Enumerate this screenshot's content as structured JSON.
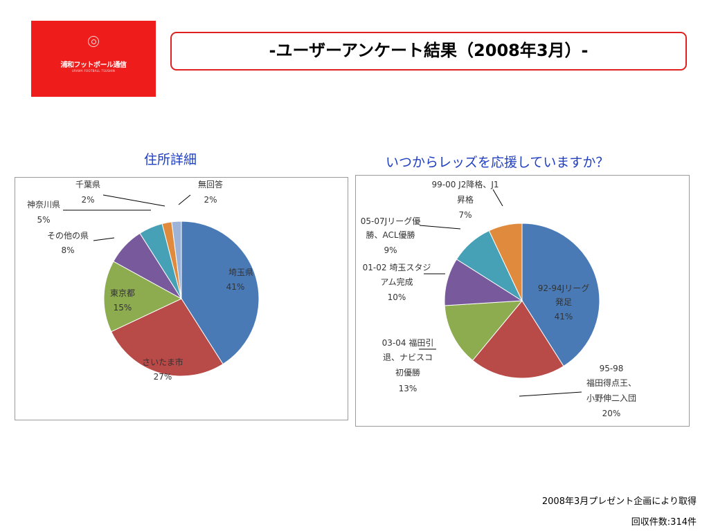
{
  "logo": {
    "text": "浦和フットボール通信",
    "subtext": "URAWA FOOTBALL TSUSHIN",
    "background": "#ef1c1c"
  },
  "header": {
    "title": "-ユーザーアンケート結果（2008年3月）-"
  },
  "chart_data": [
    {
      "type": "pie",
      "title": "住所詳細",
      "slices": [
        {
          "label": "埼玉県",
          "value": 41,
          "pct_label": "41%",
          "color": "#4a7ab5"
        },
        {
          "label": "さいたま市",
          "value": 27,
          "pct_label": "27%",
          "color": "#b84a48"
        },
        {
          "label": "東京都",
          "value": 15,
          "pct_label": "15%",
          "color": "#8dab4f"
        },
        {
          "label": "その他の県",
          "value": 8,
          "pct_label": "8%",
          "color": "#77599c"
        },
        {
          "label": "神奈川県",
          "value": 5,
          "pct_label": "5%",
          "color": "#46a0b6"
        },
        {
          "label": "千葉県",
          "value": 2,
          "pct_label": "2%",
          "color": "#e08a3e"
        },
        {
          "label": "無回答",
          "value": 2,
          "pct_label": "2%",
          "color": "#9db3d8"
        }
      ]
    },
    {
      "type": "pie",
      "title": "いつからレッズを応援していますか？",
      "slices": [
        {
          "label": "92-94Jリーグ発足",
          "value": 41,
          "pct_label": "41%",
          "color": "#4a7ab5"
        },
        {
          "label": "95-98 福田得点王、小野伸二入団",
          "value": 20,
          "pct_label": "20%",
          "color": "#b84a48"
        },
        {
          "label": "03-04 福田引退、ナビスコ初優勝",
          "value": 13,
          "pct_label": "13%",
          "color": "#8dab4f"
        },
        {
          "label": "01-02 埼玉スタジアム完成",
          "value": 10,
          "pct_label": "10%",
          "color": "#77599c"
        },
        {
          "label": "05-07Jリーグ優勝、ACL優勝",
          "value": 9,
          "pct_label": "9%",
          "color": "#46a0b6"
        },
        {
          "label": "99-00 J2降格、J1昇格",
          "value": 7,
          "pct_label": "7%",
          "color": "#e08a3e"
        }
      ]
    }
  ],
  "footer": {
    "note1": "2008年3月プレゼント企画により取得",
    "note2": "回収件数:314件"
  }
}
